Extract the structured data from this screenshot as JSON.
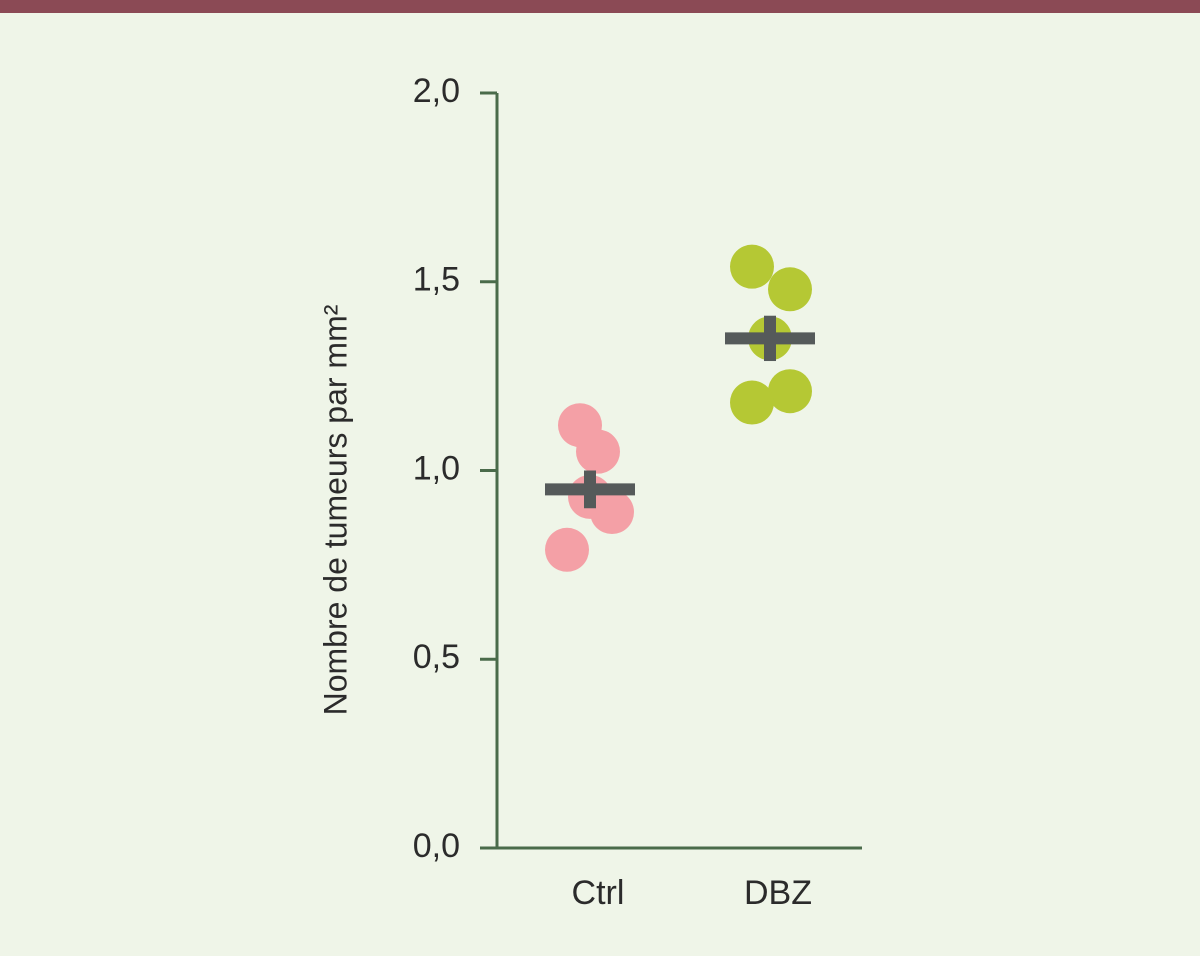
{
  "chart_data": {
    "type": "dot",
    "y_label": "Nombre de tumeurs par mm²",
    "categories": [
      "Ctrl",
      "DBZ"
    ],
    "values": [
      [
        1.12,
        1.05,
        0.93,
        0.89,
        0.79
      ],
      [
        1.54,
        1.48,
        1.35,
        1.21,
        1.18
      ]
    ],
    "colors": [
      "#f4a0a6",
      "#b5c834"
    ],
    "means": [
      0.95,
      1.35
    ],
    "errors": [
      0.05,
      0.06
    ],
    "mean_color": "#555a5a",
    "ylim": [
      0,
      2
    ],
    "yticks": [
      {
        "value": 0,
        "label": "0,0"
      },
      {
        "value": 0.5,
        "label": "0,5"
      },
      {
        "value": 1,
        "label": "1,0"
      },
      {
        "value": 1.5,
        "label": "1,5"
      },
      {
        "value": 2,
        "label": "2,0"
      }
    ]
  }
}
